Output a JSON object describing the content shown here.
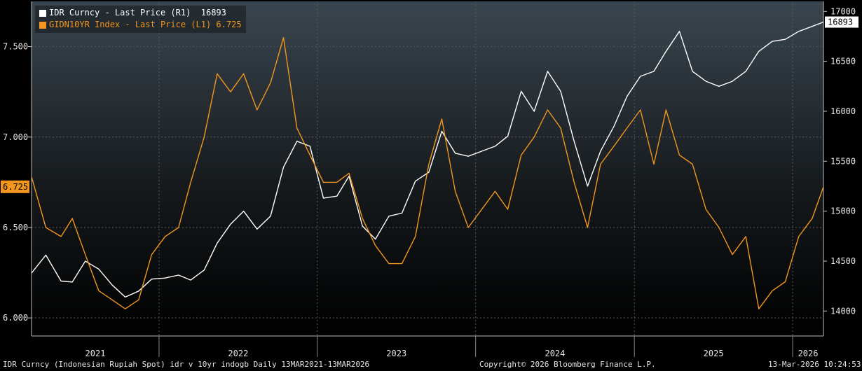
{
  "colors": {
    "idr": "#ffffff",
    "yield": "#f2961e",
    "axis_text": "#e6e6e6",
    "grid": "#5a5a5a"
  },
  "legend": {
    "items": [
      {
        "label": "IDR Curncy - Last Price (R1)",
        "value": "16893",
        "color": "#ffffff"
      },
      {
        "label": "GIDN10YR Index - Last Price (L1)",
        "value": "6.725",
        "color": "#f2961e"
      }
    ]
  },
  "footer": {
    "description": "IDR Curncy (Indonesian Rupiah Spot) idr v 10yr indogb Daily 13MAR2021-13MAR2026",
    "copyright": "Copyright© 2026 Bloomberg Finance L.P.",
    "timestamp": "13-Mar-2026 10:24:53"
  },
  "chart_data": {
    "type": "line",
    "x_range": [
      "2021-03-13",
      "2026-03-13"
    ],
    "x_year_labels": [
      "2021",
      "2022",
      "2023",
      "2024",
      "2025",
      "2026"
    ],
    "left_axis": {
      "ticks": [
        "6.000",
        "6.500",
        "7.000",
        "7.500"
      ],
      "ylim": [
        5.9,
        7.75
      ]
    },
    "right_axis": {
      "ticks": [
        "14000",
        "14500",
        "15000",
        "15500",
        "16000",
        "16500",
        "17000"
      ],
      "ylim": [
        13750,
        17100
      ]
    },
    "last_values": {
      "left": "6.725",
      "right": "16893"
    },
    "series": [
      {
        "name": "IDR Curncy - Last Price (R1)",
        "axis": "right",
        "color": "#ffffff",
        "points": [
          [
            "2021-03-13",
            14380
          ],
          [
            "2021-04-15",
            14560
          ],
          [
            "2021-05-20",
            14300
          ],
          [
            "2021-06-15",
            14290
          ],
          [
            "2021-07-15",
            14500
          ],
          [
            "2021-08-15",
            14420
          ],
          [
            "2021-09-15",
            14260
          ],
          [
            "2021-10-15",
            14140
          ],
          [
            "2021-11-15",
            14200
          ],
          [
            "2021-12-15",
            14320
          ],
          [
            "2022-01-15",
            14330
          ],
          [
            "2022-02-15",
            14360
          ],
          [
            "2022-03-15",
            14310
          ],
          [
            "2022-04-15",
            14410
          ],
          [
            "2022-05-15",
            14680
          ],
          [
            "2022-06-15",
            14870
          ],
          [
            "2022-07-15",
            15000
          ],
          [
            "2022-08-15",
            14820
          ],
          [
            "2022-09-15",
            14950
          ],
          [
            "2022-10-15",
            15440
          ],
          [
            "2022-11-15",
            15700
          ],
          [
            "2022-12-15",
            15650
          ],
          [
            "2023-01-15",
            15130
          ],
          [
            "2023-02-15",
            15150
          ],
          [
            "2023-03-15",
            15350
          ],
          [
            "2023-04-15",
            14850
          ],
          [
            "2023-05-15",
            14720
          ],
          [
            "2023-06-15",
            14950
          ],
          [
            "2023-07-15",
            14980
          ],
          [
            "2023-08-15",
            15300
          ],
          [
            "2023-09-15",
            15390
          ],
          [
            "2023-10-15",
            15800
          ],
          [
            "2023-11-15",
            15580
          ],
          [
            "2023-12-15",
            15550
          ],
          [
            "2024-01-15",
            15600
          ],
          [
            "2024-02-15",
            15650
          ],
          [
            "2024-03-15",
            15750
          ],
          [
            "2024-04-15",
            16200
          ],
          [
            "2024-05-15",
            16000
          ],
          [
            "2024-06-15",
            16400
          ],
          [
            "2024-07-15",
            16200
          ],
          [
            "2024-08-15",
            15700
          ],
          [
            "2024-09-15",
            15250
          ],
          [
            "2024-10-15",
            15600
          ],
          [
            "2024-11-15",
            15850
          ],
          [
            "2024-12-15",
            16150
          ],
          [
            "2025-01-15",
            16350
          ],
          [
            "2025-02-15",
            16400
          ],
          [
            "2025-03-15",
            16600
          ],
          [
            "2025-04-15",
            16800
          ],
          [
            "2025-05-15",
            16400
          ],
          [
            "2025-06-15",
            16300
          ],
          [
            "2025-07-15",
            16250
          ],
          [
            "2025-08-15",
            16300
          ],
          [
            "2025-09-15",
            16400
          ],
          [
            "2025-10-15",
            16600
          ],
          [
            "2025-11-15",
            16700
          ],
          [
            "2025-12-15",
            16720
          ],
          [
            "2026-01-15",
            16800
          ],
          [
            "2026-02-15",
            16850
          ],
          [
            "2026-03-13",
            16893
          ]
        ]
      },
      {
        "name": "GIDN10YR Index - Last Price (L1)",
        "axis": "left",
        "color": "#f2961e",
        "points": [
          [
            "2021-03-13",
            6.78
          ],
          [
            "2021-04-15",
            6.5
          ],
          [
            "2021-05-20",
            6.45
          ],
          [
            "2021-06-15",
            6.55
          ],
          [
            "2021-07-15",
            6.35
          ],
          [
            "2021-08-15",
            6.15
          ],
          [
            "2021-09-15",
            6.1
          ],
          [
            "2021-10-15",
            6.05
          ],
          [
            "2021-11-15",
            6.1
          ],
          [
            "2021-12-15",
            6.35
          ],
          [
            "2022-01-15",
            6.45
          ],
          [
            "2022-02-15",
            6.5
          ],
          [
            "2022-03-15",
            6.75
          ],
          [
            "2022-04-15",
            7.0
          ],
          [
            "2022-05-15",
            7.35
          ],
          [
            "2022-06-15",
            7.25
          ],
          [
            "2022-07-15",
            7.35
          ],
          [
            "2022-08-15",
            7.15
          ],
          [
            "2022-09-15",
            7.3
          ],
          [
            "2022-10-15",
            7.55
          ],
          [
            "2022-11-15",
            7.05
          ],
          [
            "2022-12-15",
            6.9
          ],
          [
            "2023-01-15",
            6.75
          ],
          [
            "2023-02-15",
            6.75
          ],
          [
            "2023-03-15",
            6.8
          ],
          [
            "2023-04-15",
            6.55
          ],
          [
            "2023-05-15",
            6.4
          ],
          [
            "2023-06-15",
            6.3
          ],
          [
            "2023-07-15",
            6.3
          ],
          [
            "2023-08-15",
            6.45
          ],
          [
            "2023-09-15",
            6.85
          ],
          [
            "2023-10-15",
            7.1
          ],
          [
            "2023-11-15",
            6.7
          ],
          [
            "2023-12-15",
            6.5
          ],
          [
            "2024-01-15",
            6.6
          ],
          [
            "2024-02-15",
            6.7
          ],
          [
            "2024-03-15",
            6.6
          ],
          [
            "2024-04-15",
            6.9
          ],
          [
            "2024-05-15",
            7.0
          ],
          [
            "2024-06-15",
            7.15
          ],
          [
            "2024-07-15",
            7.05
          ],
          [
            "2024-08-15",
            6.75
          ],
          [
            "2024-09-15",
            6.5
          ],
          [
            "2024-10-15",
            6.85
          ],
          [
            "2024-11-15",
            6.95
          ],
          [
            "2024-12-15",
            7.05
          ],
          [
            "2025-01-15",
            7.15
          ],
          [
            "2025-02-15",
            6.85
          ],
          [
            "2025-03-15",
            7.15
          ],
          [
            "2025-04-15",
            6.9
          ],
          [
            "2025-05-15",
            6.85
          ],
          [
            "2025-06-15",
            6.6
          ],
          [
            "2025-07-15",
            6.5
          ],
          [
            "2025-08-15",
            6.35
          ],
          [
            "2025-09-15",
            6.45
          ],
          [
            "2025-10-15",
            6.05
          ],
          [
            "2025-11-15",
            6.15
          ],
          [
            "2025-12-15",
            6.2
          ],
          [
            "2026-01-15",
            6.45
          ],
          [
            "2026-02-15",
            6.55
          ],
          [
            "2026-03-13",
            6.725
          ]
        ]
      }
    ]
  }
}
